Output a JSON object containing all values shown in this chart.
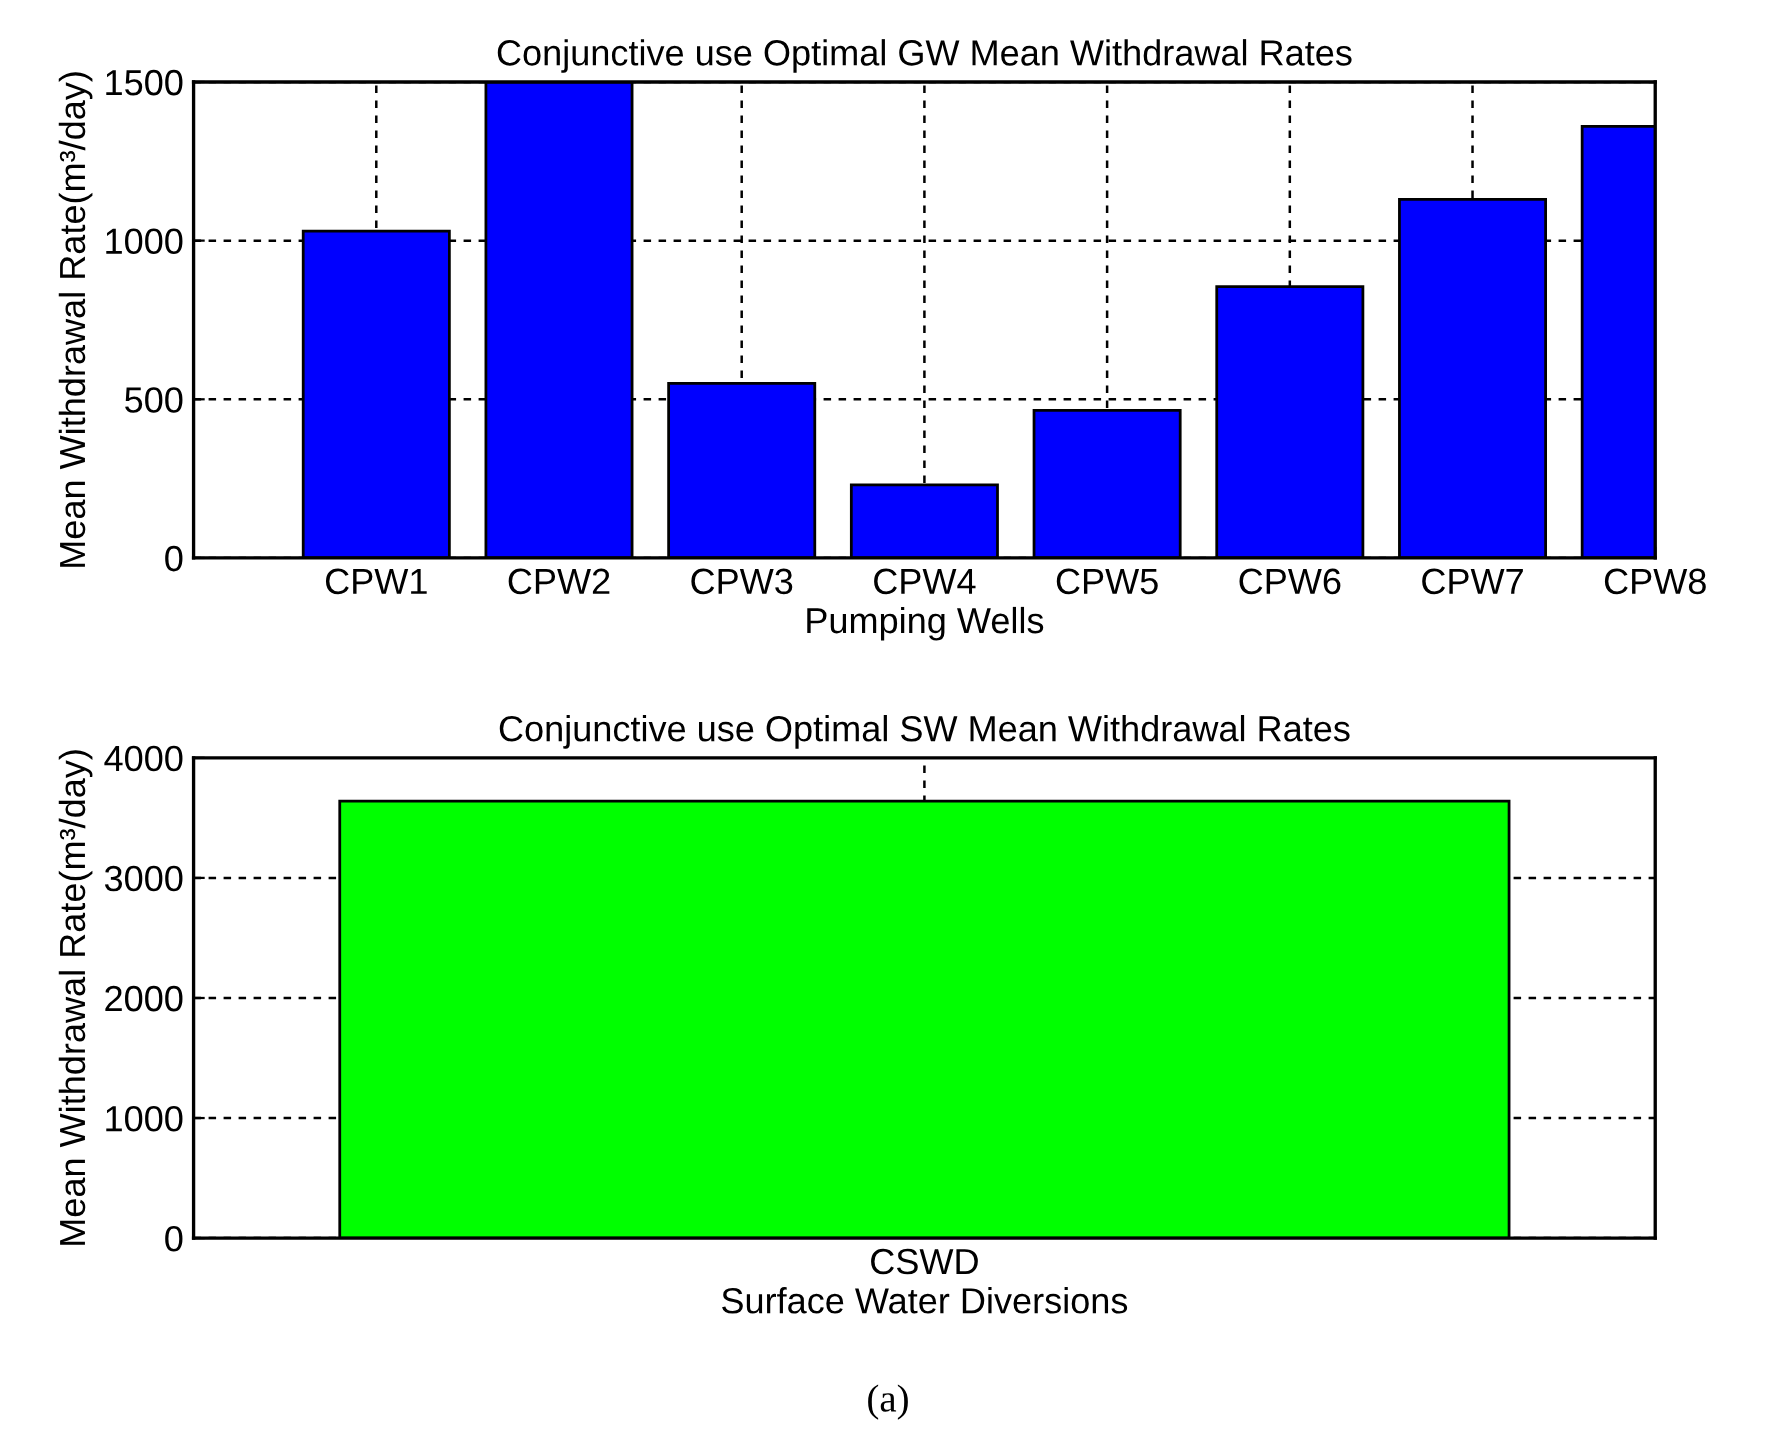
{
  "chart_data": [
    {
      "type": "bar",
      "title": "Conjunctive use Optimal GW Mean Withdrawal Rates",
      "xlabel": "Pumping Wells",
      "ylabel": "Mean Withdrawal Rate(m³/day)",
      "categories": [
        null,
        "CPW1",
        "CPW2",
        "CPW3",
        "CPW4",
        "CPW5",
        "CPW6",
        "CPW7",
        "CPW8"
      ],
      "values": [
        null,
        1030,
        1500,
        550,
        230,
        465,
        855,
        1130,
        1360
      ],
      "color": "#0000ff",
      "ylim": [
        0,
        1500
      ],
      "yticks": [
        0,
        500,
        1000,
        1500
      ],
      "grid": true
    },
    {
      "type": "bar",
      "title": "Conjunctive use Optimal SW Mean Withdrawal Rates",
      "xlabel": "Surface Water Diversions",
      "ylabel": "Mean Withdrawal Rate(m³/day)",
      "categories": [
        "CSWD"
      ],
      "values": [
        3640
      ],
      "color": "#00ff00",
      "ylim": [
        0,
        4000
      ],
      "yticks": [
        0,
        1000,
        2000,
        3000,
        4000
      ],
      "grid": true,
      "annotations": [
        "(a)"
      ]
    }
  ]
}
